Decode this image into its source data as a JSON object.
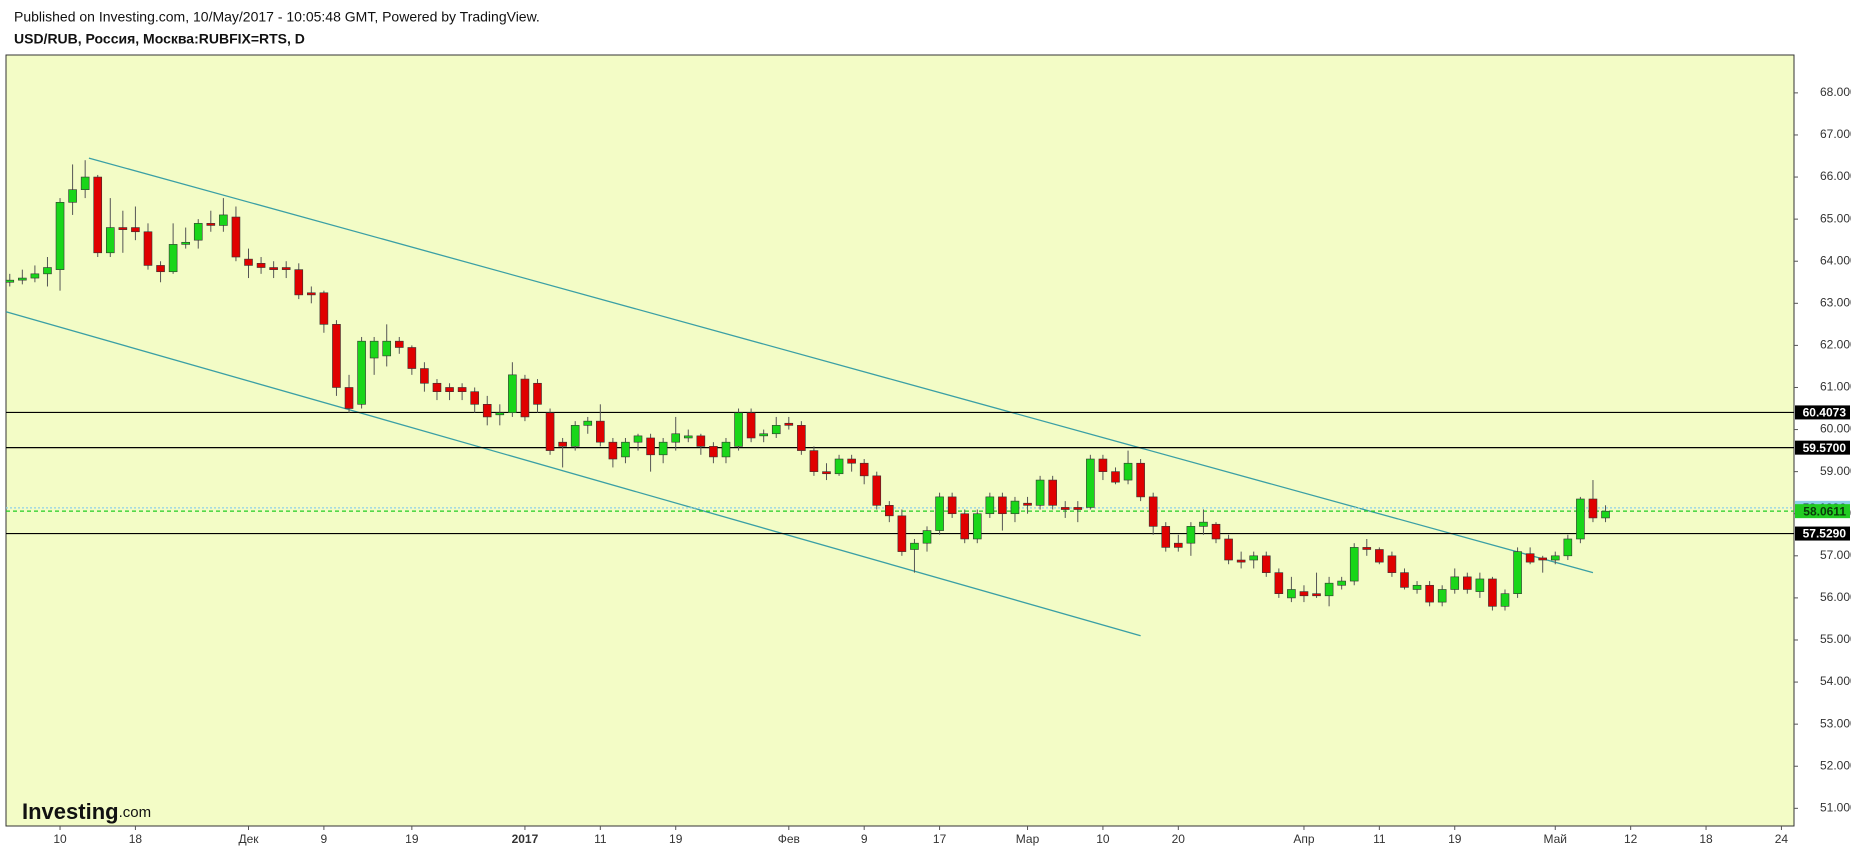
{
  "header": {
    "published": "Published on Investing.com, 10/May/2017 - 10:05:48 GMT, Powered by TradingView.",
    "symbol": "USD/RUB, Россия, Москва:RUBFIX=RTS, D"
  },
  "logo": {
    "name": "Investing",
    "suffix": ".com"
  },
  "chart_data": {
    "type": "candlestick",
    "up_color": "#19d619",
    "down_color": "#e00000",
    "background": "#f3fcc6",
    "trend_color": "#3a9fa5",
    "xlim": [
      -0.3,
      142
    ],
    "xticks": [
      {
        "value": 4,
        "label": "10"
      },
      {
        "value": 10,
        "label": "18"
      },
      {
        "value": 19,
        "label": "Дек"
      },
      {
        "value": 25,
        "label": "9"
      },
      {
        "value": 32,
        "label": "19"
      },
      {
        "value": 41,
        "label": "2017"
      },
      {
        "value": 47,
        "label": "11"
      },
      {
        "value": 53,
        "label": "19"
      },
      {
        "value": 62,
        "label": "Фев"
      },
      {
        "value": 68,
        "label": "9"
      },
      {
        "value": 74,
        "label": "17"
      },
      {
        "value": 81,
        "label": "Мар"
      },
      {
        "value": 87,
        "label": "10"
      },
      {
        "value": 93,
        "label": "20"
      },
      {
        "value": 103,
        "label": "Апр"
      },
      {
        "value": 109,
        "label": "11"
      },
      {
        "value": 115,
        "label": "19"
      },
      {
        "value": 123,
        "label": "Май"
      },
      {
        "value": 129,
        "label": "12"
      },
      {
        "value": 135,
        "label": "18"
      },
      {
        "value": 141,
        "label": "24"
      }
    ],
    "ylim": [
      50.58,
      68.9
    ],
    "yticks": [
      {
        "value": 51,
        "label": "51.0000"
      },
      {
        "value": 52,
        "label": "52.0000"
      },
      {
        "value": 53,
        "label": "53.0000"
      },
      {
        "value": 54,
        "label": "54.0000"
      },
      {
        "value": 55,
        "label": "55.0000"
      },
      {
        "value": 56,
        "label": "56.0000"
      },
      {
        "value": 57,
        "label": "57.0000"
      },
      {
        "value": 58,
        "label": "58.0000"
      },
      {
        "value": 59,
        "label": "59.0000"
      },
      {
        "value": 60,
        "label": "60.0000"
      },
      {
        "value": 61,
        "label": "61.0000"
      },
      {
        "value": 62,
        "label": "62.0000"
      },
      {
        "value": 63,
        "label": "63.0000"
      },
      {
        "value": 64,
        "label": "64.0000"
      },
      {
        "value": 65,
        "label": "65.0000"
      },
      {
        "value": 66,
        "label": "66.0000"
      },
      {
        "value": 67,
        "label": "67.0000"
      },
      {
        "value": 68,
        "label": "68.0000"
      }
    ],
    "levels": [
      {
        "value": 60.4073,
        "color": "#000000",
        "text_color": "#ffffff",
        "style": "solid"
      },
      {
        "value": 59.57,
        "label": "59.5700",
        "color": "#000000",
        "text_color": "#ffffff",
        "style": "solid"
      },
      {
        "value": 58.1396,
        "color": "#8fd0e8",
        "text_color": "#1a3a50",
        "style": "dotted"
      },
      {
        "value": 58.0611,
        "color": "#22cc22",
        "text_color": "#0a3a0a",
        "style": "dashed"
      },
      {
        "value": 57.529,
        "label": "57.5290",
        "color": "#000000",
        "text_color": "#ffffff",
        "style": "solid"
      }
    ],
    "trendlines": [
      {
        "x": [
          6.3,
          126
        ],
        "y": [
          66.45,
          56.6
        ]
      },
      {
        "x": [
          -0.3,
          90
        ],
        "y": [
          62.8,
          55.1
        ]
      }
    ],
    "ohlc": [
      [
        63.5,
        63.7,
        63.4,
        63.55
      ],
      [
        63.55,
        63.8,
        63.45,
        63.6
      ],
      [
        63.6,
        63.9,
        63.5,
        63.7
      ],
      [
        63.7,
        64.1,
        63.4,
        63.85
      ],
      [
        63.8,
        65.5,
        63.3,
        65.4
      ],
      [
        65.4,
        66.3,
        65.1,
        65.7
      ],
      [
        65.7,
        66.4,
        65.5,
        66.0
      ],
      [
        66.0,
        66.05,
        64.1,
        64.2
      ],
      [
        64.2,
        65.5,
        64.1,
        64.8
      ],
      [
        64.8,
        65.2,
        64.2,
        64.75
      ],
      [
        64.8,
        65.3,
        64.5,
        64.7
      ],
      [
        64.7,
        64.9,
        63.8,
        63.9
      ],
      [
        63.9,
        64.0,
        63.5,
        63.75
      ],
      [
        63.75,
        64.9,
        63.7,
        64.4
      ],
      [
        64.4,
        64.8,
        64.3,
        64.45
      ],
      [
        64.5,
        65.0,
        64.3,
        64.9
      ],
      [
        64.9,
        65.2,
        64.7,
        64.85
      ],
      [
        64.85,
        65.5,
        64.7,
        65.1
      ],
      [
        65.05,
        65.3,
        64.0,
        64.1
      ],
      [
        64.05,
        64.3,
        63.6,
        63.9
      ],
      [
        63.95,
        64.1,
        63.7,
        63.85
      ],
      [
        63.85,
        64.0,
        63.6,
        63.8
      ],
      [
        63.85,
        64.0,
        63.6,
        63.8
      ],
      [
        63.8,
        63.95,
        63.1,
        63.2
      ],
      [
        63.25,
        63.4,
        63.0,
        63.2
      ],
      [
        63.25,
        63.3,
        62.3,
        62.5
      ],
      [
        62.5,
        62.6,
        60.8,
        61.0
      ],
      [
        61.0,
        61.3,
        60.4,
        60.5
      ],
      [
        60.6,
        62.2,
        60.5,
        62.1
      ],
      [
        61.7,
        62.2,
        61.3,
        62.1
      ],
      [
        61.75,
        62.5,
        61.5,
        62.1
      ],
      [
        62.1,
        62.2,
        61.8,
        61.95
      ],
      [
        61.95,
        62.0,
        61.3,
        61.45
      ],
      [
        61.45,
        61.6,
        60.9,
        61.1
      ],
      [
        61.1,
        61.2,
        60.7,
        60.9
      ],
      [
        61.0,
        61.1,
        60.7,
        60.9
      ],
      [
        61.0,
        61.1,
        60.7,
        60.9
      ],
      [
        60.9,
        61.0,
        60.4,
        60.6
      ],
      [
        60.6,
        60.8,
        60.1,
        60.3
      ],
      [
        60.35,
        60.6,
        60.1,
        60.4
      ],
      [
        60.4,
        61.6,
        60.3,
        61.3
      ],
      [
        61.2,
        61.3,
        60.2,
        60.3
      ],
      [
        61.1,
        61.2,
        60.4,
        60.6
      ],
      [
        60.4,
        60.5,
        59.4,
        59.5
      ],
      [
        59.7,
        59.8,
        59.1,
        59.6
      ],
      [
        59.6,
        60.2,
        59.5,
        60.1
      ],
      [
        60.1,
        60.3,
        59.9,
        60.2
      ],
      [
        60.2,
        60.6,
        59.6,
        59.7
      ],
      [
        59.7,
        59.8,
        59.1,
        59.3
      ],
      [
        59.35,
        59.8,
        59.2,
        59.7
      ],
      [
        59.7,
        59.9,
        59.5,
        59.85
      ],
      [
        59.8,
        59.9,
        59.0,
        59.4
      ],
      [
        59.4,
        59.8,
        59.2,
        59.7
      ],
      [
        59.7,
        60.3,
        59.5,
        59.9
      ],
      [
        59.8,
        60.0,
        59.7,
        59.85
      ],
      [
        59.85,
        59.9,
        59.4,
        59.6
      ],
      [
        59.6,
        59.7,
        59.2,
        59.35
      ],
      [
        59.35,
        59.8,
        59.2,
        59.7
      ],
      [
        59.6,
        60.5,
        59.5,
        60.4
      ],
      [
        60.4,
        60.5,
        59.7,
        59.8
      ],
      [
        59.85,
        60.0,
        59.7,
        59.9
      ],
      [
        59.9,
        60.3,
        59.8,
        60.1
      ],
      [
        60.15,
        60.3,
        60.0,
        60.1
      ],
      [
        60.1,
        60.2,
        59.4,
        59.5
      ],
      [
        59.5,
        59.6,
        58.9,
        59.0
      ],
      [
        59.0,
        59.2,
        58.8,
        58.95
      ],
      [
        58.95,
        59.4,
        58.9,
        59.3
      ],
      [
        59.3,
        59.4,
        59.0,
        59.2
      ],
      [
        59.2,
        59.3,
        58.7,
        58.9
      ],
      [
        58.9,
        59.0,
        58.1,
        58.2
      ],
      [
        58.2,
        58.3,
        57.8,
        57.95
      ],
      [
        57.95,
        58.1,
        57.0,
        57.1
      ],
      [
        57.15,
        57.4,
        56.6,
        57.3
      ],
      [
        57.3,
        57.7,
        57.1,
        57.6
      ],
      [
        57.6,
        58.5,
        57.5,
        58.4
      ],
      [
        58.4,
        58.5,
        57.9,
        58.0
      ],
      [
        58.0,
        58.1,
        57.3,
        57.4
      ],
      [
        57.4,
        58.1,
        57.3,
        58.0
      ],
      [
        58.0,
        58.5,
        57.9,
        58.4
      ],
      [
        58.4,
        58.5,
        57.6,
        58.0
      ],
      [
        58.0,
        58.4,
        57.8,
        58.3
      ],
      [
        58.25,
        58.4,
        58.0,
        58.2
      ],
      [
        58.2,
        58.9,
        58.1,
        58.8
      ],
      [
        58.8,
        58.9,
        58.1,
        58.2
      ],
      [
        58.15,
        58.3,
        57.9,
        58.1
      ],
      [
        58.15,
        58.3,
        57.8,
        58.1
      ],
      [
        58.15,
        59.4,
        58.1,
        59.3
      ],
      [
        59.3,
        59.4,
        58.8,
        59.0
      ],
      [
        59.0,
        59.1,
        58.7,
        58.75
      ],
      [
        58.8,
        59.5,
        58.7,
        59.2
      ],
      [
        59.2,
        59.3,
        58.3,
        58.4
      ],
      [
        58.4,
        58.5,
        57.5,
        57.7
      ],
      [
        57.7,
        57.8,
        57.1,
        57.2
      ],
      [
        57.3,
        57.5,
        57.1,
        57.2
      ],
      [
        57.3,
        57.8,
        57.0,
        57.7
      ],
      [
        57.7,
        58.1,
        57.5,
        57.8
      ],
      [
        57.75,
        57.8,
        57.3,
        57.4
      ],
      [
        57.4,
        57.5,
        56.8,
        56.9
      ],
      [
        56.9,
        57.1,
        56.7,
        56.85
      ],
      [
        56.9,
        57.1,
        56.7,
        57.0
      ],
      [
        57.0,
        57.1,
        56.5,
        56.6
      ],
      [
        56.6,
        56.7,
        56.0,
        56.1
      ],
      [
        56.0,
        56.5,
        55.9,
        56.2
      ],
      [
        56.15,
        56.3,
        55.9,
        56.05
      ],
      [
        56.1,
        56.6,
        56.0,
        56.05
      ],
      [
        56.05,
        56.5,
        55.8,
        56.35
      ],
      [
        56.3,
        56.5,
        56.2,
        56.4
      ],
      [
        56.4,
        57.3,
        56.3,
        57.2
      ],
      [
        57.2,
        57.4,
        57.0,
        57.15
      ],
      [
        57.15,
        57.2,
        56.8,
        56.85
      ],
      [
        57.0,
        57.1,
        56.5,
        56.6
      ],
      [
        56.6,
        56.7,
        56.2,
        56.25
      ],
      [
        56.2,
        56.4,
        56.1,
        56.3
      ],
      [
        56.3,
        56.4,
        55.8,
        55.9
      ],
      [
        55.9,
        56.3,
        55.8,
        56.2
      ],
      [
        56.2,
        56.7,
        56.1,
        56.5
      ],
      [
        56.5,
        56.6,
        56.1,
        56.2
      ],
      [
        56.15,
        56.6,
        56.0,
        56.45
      ],
      [
        56.45,
        56.5,
        55.7,
        55.8
      ],
      [
        55.8,
        56.2,
        55.7,
        56.1
      ],
      [
        56.1,
        57.2,
        56.0,
        57.1
      ],
      [
        57.05,
        57.2,
        56.8,
        56.85
      ],
      [
        56.95,
        57.0,
        56.6,
        56.9
      ],
      [
        56.9,
        57.1,
        56.8,
        57.0
      ],
      [
        57.0,
        57.5,
        56.9,
        57.4
      ],
      [
        57.4,
        58.4,
        57.3,
        58.35
      ],
      [
        58.35,
        58.8,
        57.8,
        57.9
      ],
      [
        57.9,
        58.2,
        57.8,
        58.06
      ]
    ]
  }
}
